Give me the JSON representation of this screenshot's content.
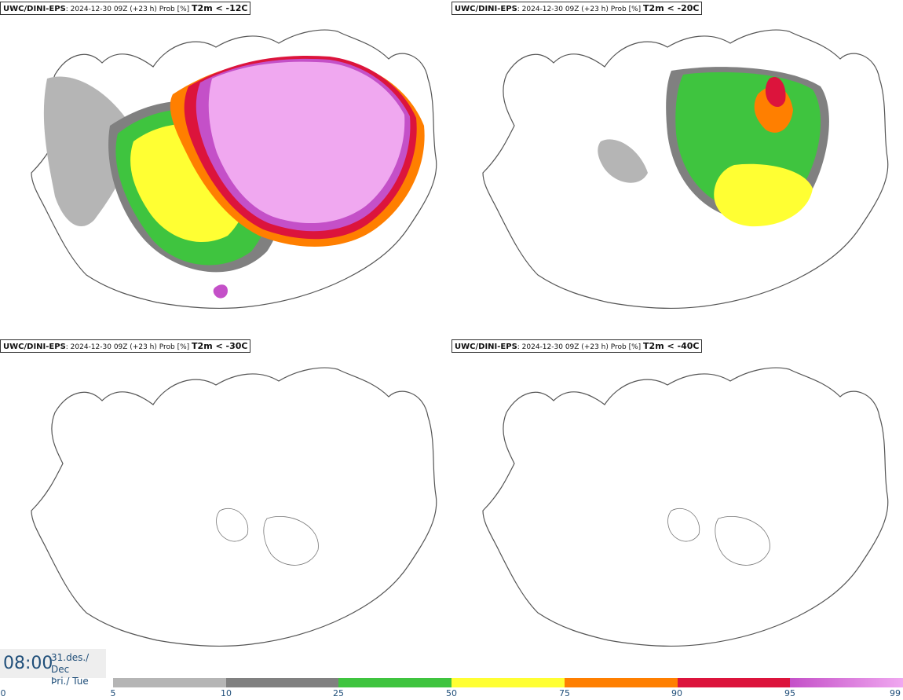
{
  "panels": [
    {
      "model": "UWC/DINI-EPS",
      "info": ": 2024-12-30 09Z (+23 h) Prob [%] ",
      "variable": "T2m < -12C"
    },
    {
      "model": "UWC/DINI-EPS",
      "info": ": 2024-12-30 09Z (+23 h) Prob [%] ",
      "variable": "T2m < -20C"
    },
    {
      "model": "UWC/DINI-EPS",
      "info": ": 2024-12-30 09Z (+23 h) Prob [%] ",
      "variable": "T2m < -30C"
    },
    {
      "model": "UWC/DINI-EPS",
      "info": ": 2024-12-30 09Z (+23 h) Prob [%] ",
      "variable": "T2m < -40C"
    }
  ],
  "time": {
    "hour": "08:00",
    "date_line1": "31.des./ Dec",
    "date_line2": "Þri./ Tue"
  },
  "legend": {
    "ticks": [
      "0",
      "5",
      "10",
      "25",
      "50",
      "75",
      "90",
      "95",
      "99"
    ],
    "colors": {
      "5-10": "#b5b5b5",
      "10-25": "#808080",
      "25-50": "#3fc43f",
      "50-75": "#ffff33",
      "75-90": "#ff7f00",
      "90-95": "#dc143c",
      "95-99": "#c450c8",
      "99+": "#f0a8f0"
    }
  },
  "map_colors": {
    "coast": "#555555",
    "land": "#ffffff"
  }
}
